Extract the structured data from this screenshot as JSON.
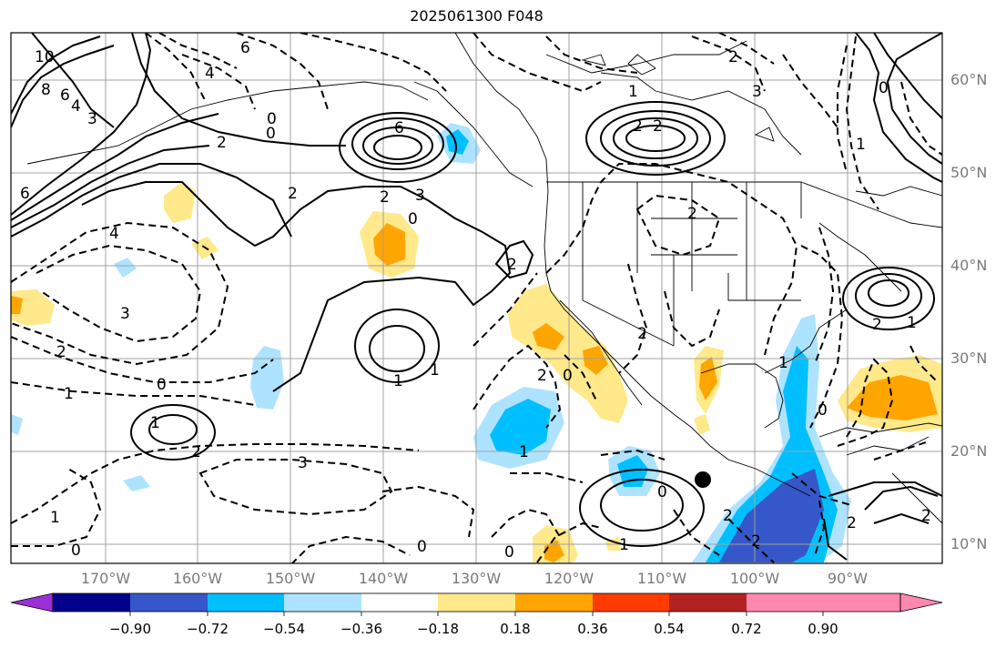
{
  "title": "2025061300 F048",
  "lon_labels": [
    "170°W",
    "160°W",
    "150°W",
    "140°W",
    "130°W",
    "120°W",
    "110°W",
    "100°W",
    "90°W"
  ],
  "lat_labels": [
    "60°N",
    "50°N",
    "40°N",
    "30°N",
    "20°N",
    "10°N"
  ],
  "contour_labels": [
    "6",
    "4",
    "10",
    "8",
    "6",
    "4",
    "3",
    "2",
    "0",
    "2",
    "6",
    "2",
    "3",
    "0",
    "2",
    "6",
    "4",
    "3",
    "2",
    "1",
    "0",
    "1",
    "2",
    "3",
    "1",
    "0",
    "1",
    "1",
    "0",
    "2",
    "2",
    "1",
    "0",
    "1",
    "0",
    "0",
    "2",
    "2",
    "1",
    "2",
    "1",
    "0",
    "2",
    "2",
    "1",
    "0",
    "2",
    "1",
    "0",
    "2",
    "3",
    "2",
    "2"
  ],
  "colorbar": {
    "ticks": [
      "−0.90",
      "−0.72",
      "−0.54",
      "−0.36",
      "−0.18",
      "0.18",
      "0.36",
      "0.54",
      "0.72",
      "0.90"
    ],
    "colors": [
      "#9b30d6",
      "#00008b",
      "#3557c9",
      "#00bfff",
      "#aee3ff",
      "#ffffff",
      "#ffe98a",
      "#ffa500",
      "#ff3b00",
      "#b22222",
      "#ff88b0"
    ]
  },
  "marker": "black-dot"
}
